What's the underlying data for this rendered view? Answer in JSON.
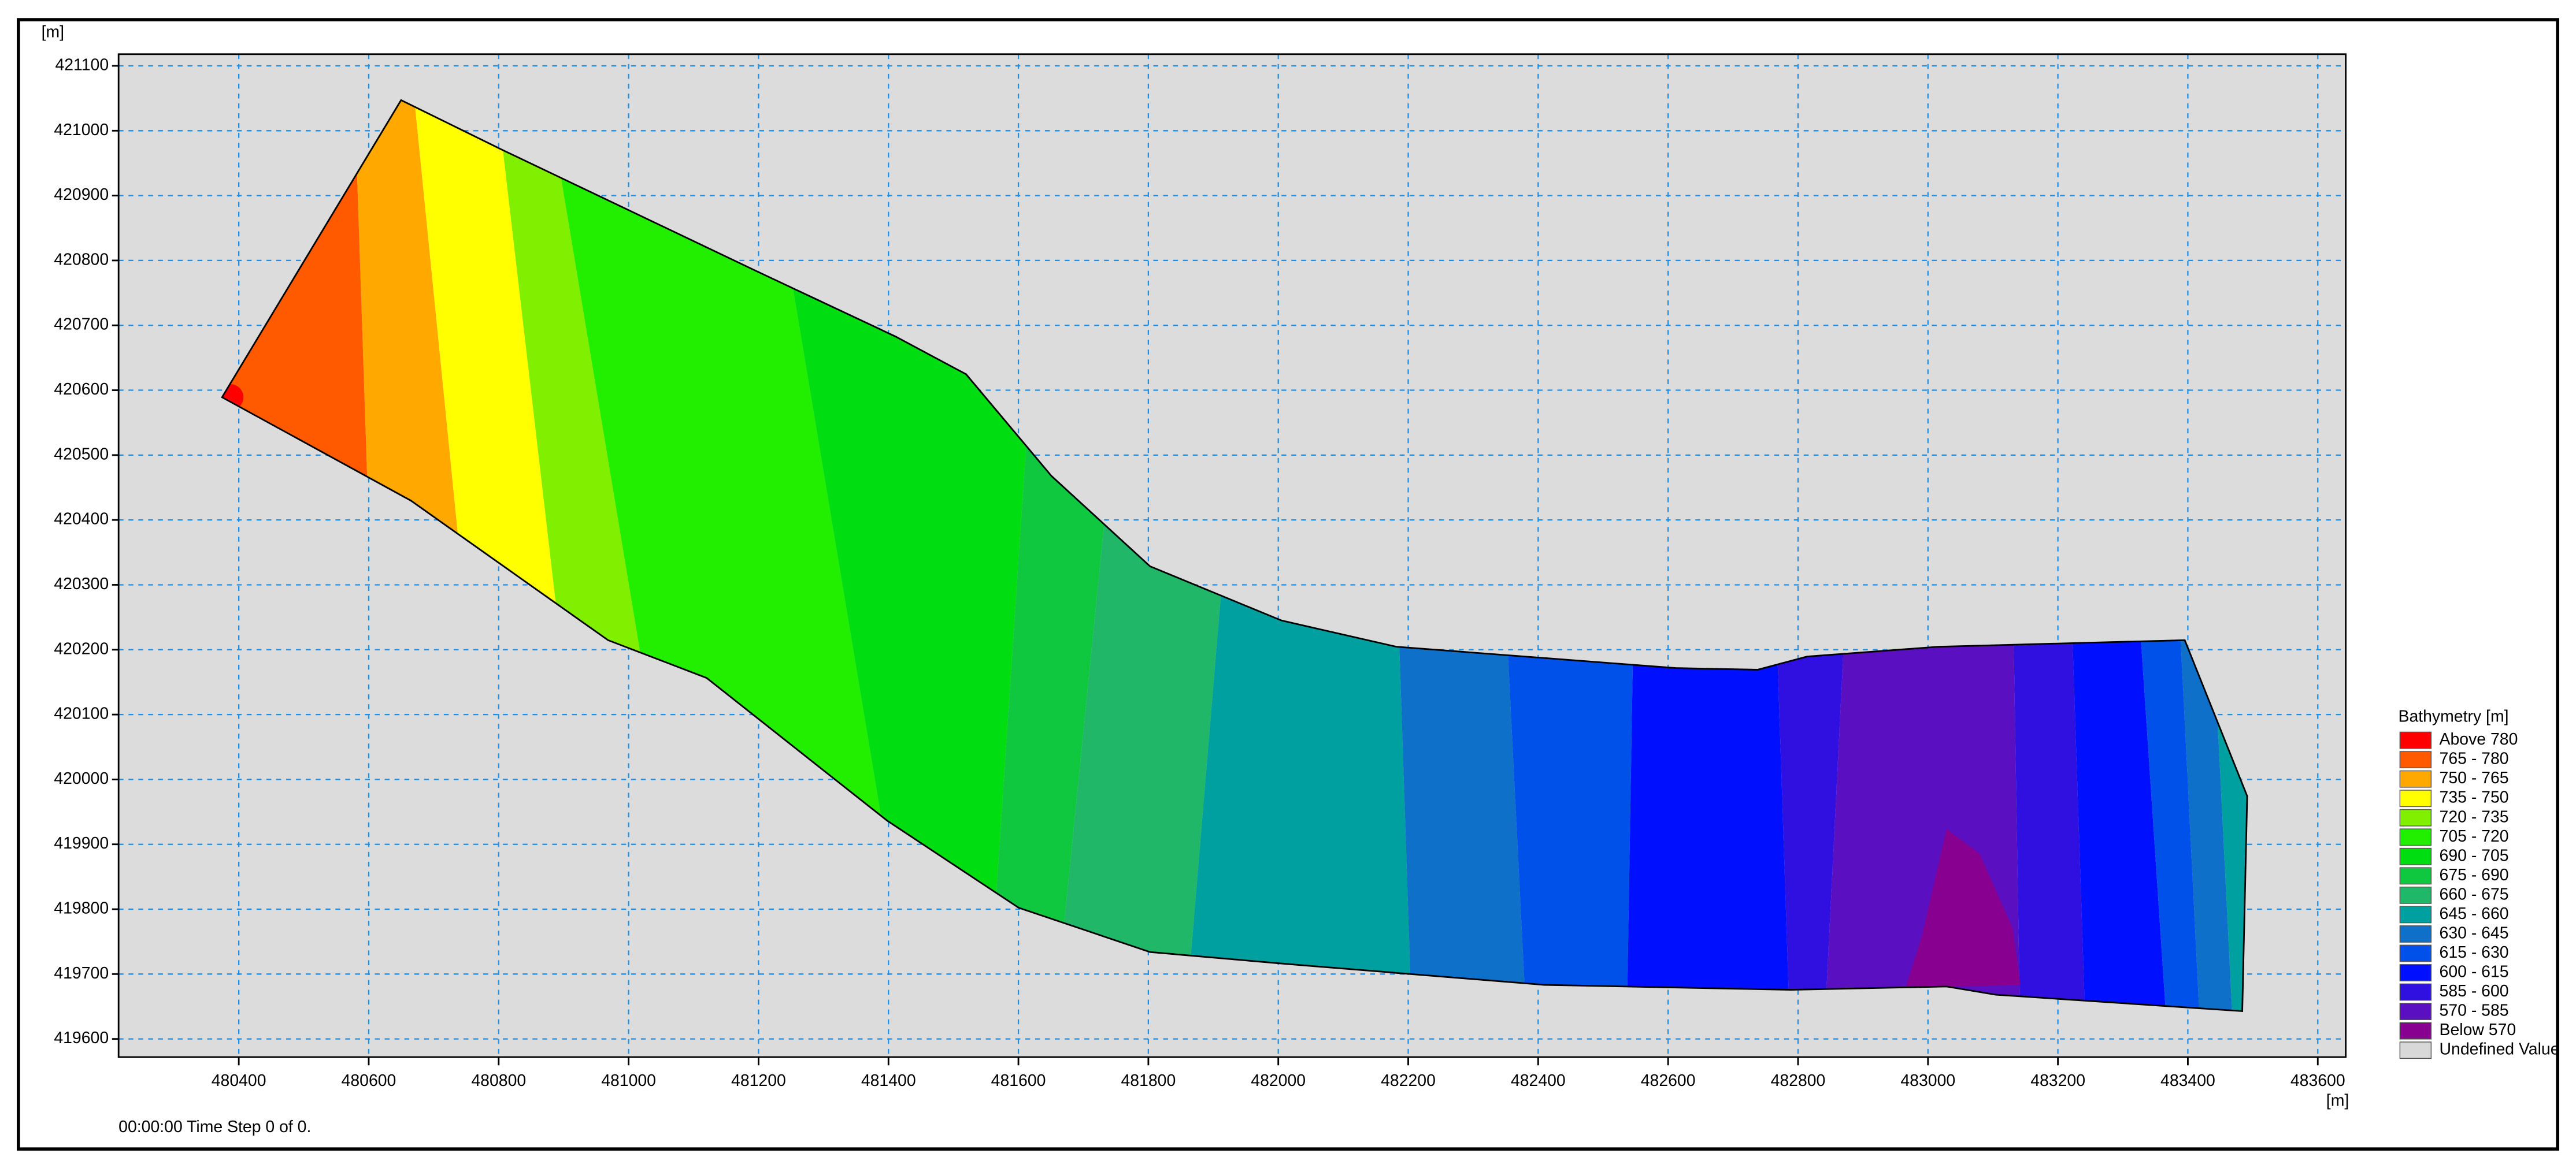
{
  "chart_data": {
    "type": "contour",
    "x_label": "[m]",
    "y_label": "[m]",
    "xlim": [
      480215,
      483643
    ],
    "ylim": [
      419572,
      421118
    ],
    "xticks": [
      480400,
      480600,
      480800,
      481000,
      481200,
      481400,
      481600,
      481800,
      482000,
      482200,
      482400,
      482600,
      482800,
      483000,
      483200,
      483400,
      483600
    ],
    "yticks": [
      419600,
      419700,
      419800,
      419900,
      420000,
      420100,
      420200,
      420300,
      420400,
      420500,
      420600,
      420700,
      420800,
      420900,
      421000,
      421100
    ],
    "grid": true,
    "grid_color": "#1e8fe6",
    "background": "#dcdcdc",
    "legend": {
      "title": "Bathymetry [m]",
      "position": "right",
      "items": [
        {
          "label": "Above 780",
          "color": "#ff0000"
        },
        {
          "label": "765 - 780",
          "color": "#ff5a00"
        },
        {
          "label": "750 - 765",
          "color": "#ffa800"
        },
        {
          "label": "735 - 750",
          "color": "#ffff00"
        },
        {
          "label": "720 - 735",
          "color": "#80f000"
        },
        {
          "label": "705 - 720",
          "color": "#22ee00"
        },
        {
          "label": "690 - 705",
          "color": "#00dd10"
        },
        {
          "label": "675 - 690",
          "color": "#10c840"
        },
        {
          "label": "660 - 675",
          "color": "#20b868"
        },
        {
          "label": "645 - 660",
          "color": "#00a0a0"
        },
        {
          "label": "630 - 645",
          "color": "#0e70c8"
        },
        {
          "label": "615 - 630",
          "color": "#0050ea"
        },
        {
          "label": "600 - 615",
          "color": "#0010ff"
        },
        {
          "label": "585 - 600",
          "color": "#3010e0"
        },
        {
          "label": "570 - 585",
          "color": "#5a10c0"
        },
        {
          "label": "Below 570",
          "color": "#880090"
        },
        {
          "label": "Undefined Value",
          "color": "#d8d8d8"
        }
      ]
    },
    "footer": "00:00:00 Time Step 0 of 0."
  }
}
